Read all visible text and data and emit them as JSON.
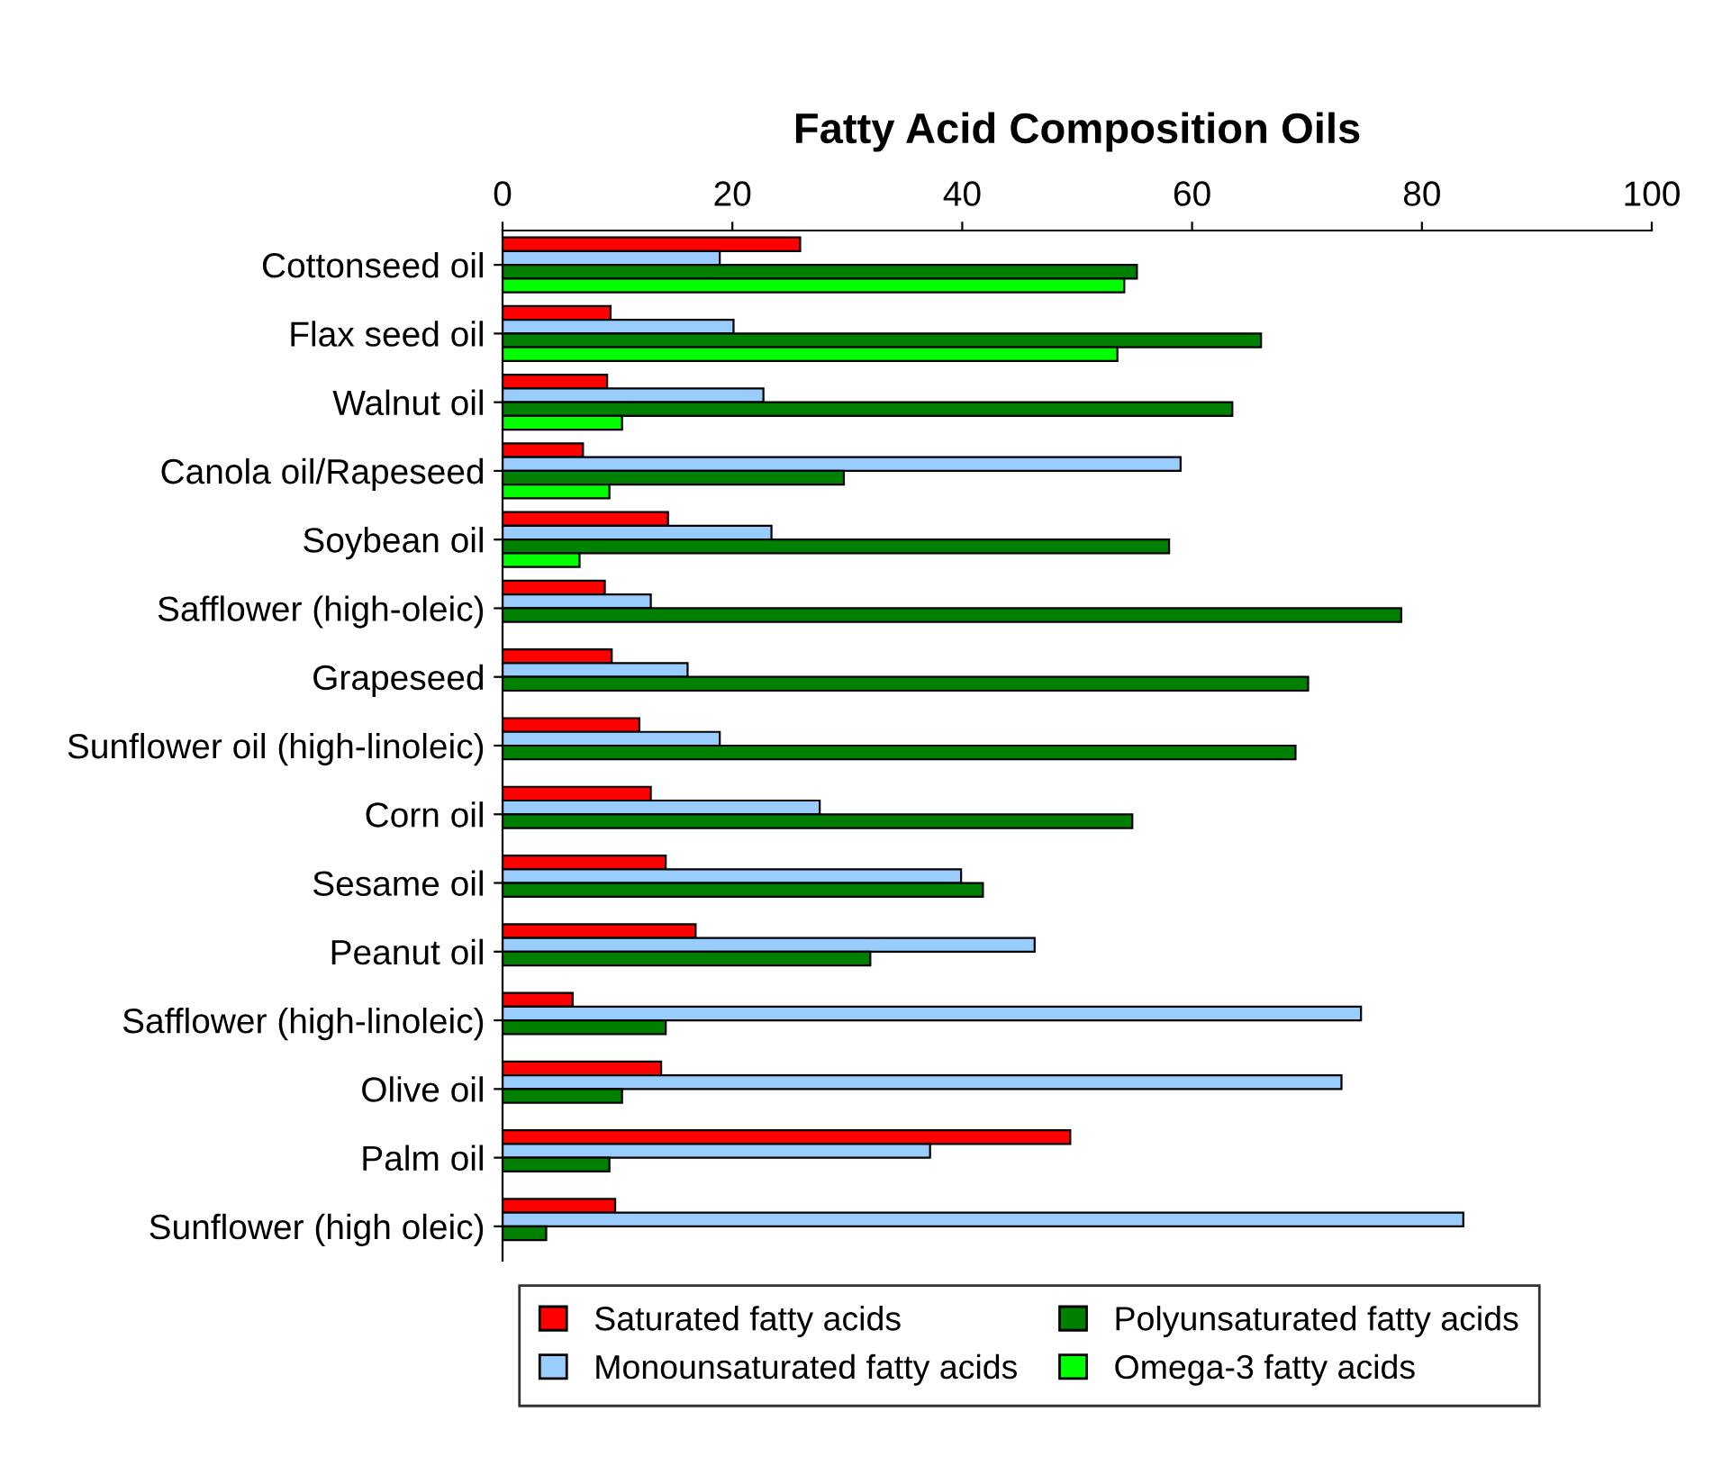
{
  "chart_data": {
    "type": "bar",
    "orientation": "horizontal",
    "title": "Fatty Acid Composition Oils",
    "categories": [
      "Cottonseed oil",
      "Flax seed oil",
      "Walnut oil",
      "Canola oil/Rapeseed",
      "Soybean oil",
      "Safflower (high-oleic)",
      "Grapeseed",
      "Sunflower oil (high-linoleic)",
      "Corn oil",
      "Sesame oil",
      "Peanut oil",
      "Safflower (high-linoleic)",
      "Olive oil",
      "Palm oil",
      "Sunflower (high oleic)"
    ],
    "series": [
      {
        "name": "Saturated fatty acids",
        "color": "#ff0000",
        "values": [
          25.9,
          9.4,
          9.1,
          7.0,
          14.4,
          8.9,
          9.5,
          11.9,
          12.9,
          14.2,
          16.8,
          6.1,
          13.8,
          49.4,
          9.8
        ]
      },
      {
        "name": "Monounsaturated fatty acids",
        "color": "#99ccff",
        "values": [
          18.9,
          20.1,
          22.7,
          59.0,
          23.4,
          12.9,
          16.1,
          18.9,
          27.6,
          39.9,
          46.3,
          74.7,
          73.0,
          37.2,
          83.6
        ]
      },
      {
        "name": "Polyunsaturated fatty acids",
        "color": "#008000",
        "values": [
          55.2,
          66.0,
          63.5,
          29.7,
          58.0,
          78.2,
          70.1,
          69.0,
          54.8,
          41.8,
          32.0,
          14.2,
          10.4,
          9.3,
          3.8
        ]
      },
      {
        "name": "Omega-3 fatty acids",
        "color": "#00ff00",
        "values": [
          54.1,
          53.5,
          10.4,
          9.3,
          6.7,
          null,
          null,
          null,
          null,
          null,
          null,
          null,
          null,
          null,
          null
        ]
      }
    ],
    "xlim": [
      0,
      100
    ],
    "xticks": [
      0,
      20,
      40,
      60,
      80,
      100
    ],
    "grid": false,
    "legend": "bottom"
  }
}
